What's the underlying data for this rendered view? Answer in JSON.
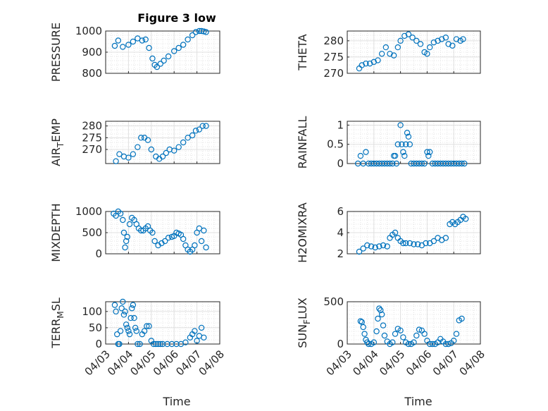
{
  "title": "Figure 3 low",
  "x_label": "Time",
  "x_ticks": [
    "04/03",
    "04/04",
    "04/05",
    "04/06",
    "04/07",
    "04/08"
  ],
  "marker_color": "#0072BD",
  "chart_data": [
    {
      "type": "scatter",
      "ylabel": "PRESSURE",
      "ylim": [
        800,
        1000
      ],
      "yticks": [
        "800",
        "900",
        "1000"
      ],
      "grid": "on",
      "xlim": [
        "04/03",
        "04/08"
      ],
      "series": [
        {
          "x": [
            3.4,
            3.55,
            3.75,
            4.0,
            4.2,
            4.4,
            4.6,
            4.75,
            4.9,
            5.05,
            5.15,
            5.25,
            5.4,
            5.55,
            5.75,
            6.0,
            6.2,
            6.4,
            6.6,
            6.8,
            6.95,
            7.1,
            7.2,
            7.3,
            7.4
          ],
          "y": [
            930,
            955,
            925,
            935,
            950,
            965,
            955,
            960,
            920,
            870,
            840,
            830,
            845,
            860,
            880,
            905,
            920,
            935,
            960,
            980,
            995,
            1000,
            1000,
            998,
            995
          ]
        }
      ]
    },
    {
      "type": "scatter",
      "ylabel": "THETA",
      "ylim": [
        270,
        283
      ],
      "yticks": [
        "270",
        "275",
        "280"
      ],
      "grid": "on",
      "xlim": [
        "04/03",
        "04/08"
      ],
      "series": [
        {
          "x": [
            3.45,
            3.55,
            3.7,
            3.85,
            4.0,
            4.15,
            4.3,
            4.45,
            4.6,
            4.75,
            4.9,
            5.0,
            5.15,
            5.3,
            5.45,
            5.6,
            5.75,
            5.9,
            6.0,
            6.1,
            6.25,
            6.4,
            6.55,
            6.7,
            6.8,
            6.95,
            7.1,
            7.25,
            7.35
          ],
          "y": [
            271.5,
            272.5,
            273,
            273,
            273.5,
            274,
            276,
            278,
            276,
            275.5,
            278,
            280,
            281.5,
            282,
            281,
            280,
            279,
            276.5,
            276,
            278,
            279.5,
            280,
            280.5,
            281,
            279,
            278.5,
            280.5,
            280,
            280.5
          ]
        }
      ]
    },
    {
      "type": "scatter",
      "ylabel": "AIR_TEMP",
      "ylim": [
        264,
        282
      ],
      "yticks": [
        "270",
        "275",
        "280"
      ],
      "grid": "on",
      "xlim": [
        "04/03",
        "04/08"
      ],
      "series": [
        {
          "x": [
            3.45,
            3.6,
            3.8,
            4.0,
            4.2,
            4.4,
            4.55,
            4.7,
            4.85,
            5.0,
            5.2,
            5.35,
            5.5,
            5.65,
            5.8,
            6.0,
            6.2,
            6.4,
            6.6,
            6.8,
            6.95,
            7.1,
            7.25,
            7.4
          ],
          "y": [
            265,
            268,
            267,
            266.5,
            268,
            271,
            275,
            275,
            274,
            270,
            267,
            266,
            267,
            268.5,
            270,
            269.5,
            271,
            273,
            275,
            276,
            278,
            278.5,
            280,
            280
          ]
        }
      ]
    },
    {
      "type": "scatter",
      "ylabel": "RAINFALL",
      "ylim": [
        0,
        1.1
      ],
      "yticks": [
        "0",
        "0.5",
        "1"
      ],
      "grid": "on",
      "xlim": [
        "04/03",
        "04/08"
      ],
      "series": [
        {
          "x": [
            3.4,
            3.5,
            3.6,
            3.7,
            3.8,
            3.9,
            4.0,
            4.1,
            4.2,
            4.3,
            4.4,
            4.5,
            4.6,
            4.7,
            4.75,
            4.8,
            4.85,
            4.9,
            5.0,
            5.05,
            5.1,
            5.15,
            5.2,
            5.25,
            5.3,
            5.35,
            5.4,
            5.5,
            5.6,
            5.7,
            5.8,
            5.9,
            6.0,
            6.05,
            6.1,
            6.2,
            6.3,
            6.4,
            6.5,
            6.6,
            6.7,
            6.8,
            6.9,
            7.0,
            7.1,
            7.2,
            7.3,
            7.4
          ],
          "y": [
            0,
            0.2,
            0,
            0.3,
            0,
            0,
            0,
            0,
            0,
            0,
            0,
            0,
            0,
            0,
            0.2,
            0.2,
            0,
            0.5,
            1.0,
            0.5,
            0.3,
            0.2,
            0.5,
            0.8,
            0.7,
            0.5,
            0,
            0,
            0,
            0,
            0,
            0,
            0.3,
            0.2,
            0.3,
            0,
            0,
            0,
            0,
            0,
            0,
            0,
            0,
            0,
            0,
            0,
            0,
            0
          ]
        }
      ]
    },
    {
      "type": "scatter",
      "ylabel": "MIXDEPTH",
      "ylim": [
        0,
        1000
      ],
      "yticks": [
        "0",
        "500",
        "1000"
      ],
      "grid": "on",
      "xlim": [
        "04/03",
        "04/08"
      ],
      "series": [
        {
          "x": [
            3.35,
            3.45,
            3.55,
            3.65,
            3.75,
            3.8,
            3.85,
            3.9,
            3.95,
            4.05,
            4.15,
            4.25,
            4.35,
            4.45,
            4.55,
            4.65,
            4.75,
            4.85,
            4.95,
            5.05,
            5.15,
            5.3,
            5.45,
            5.6,
            5.75,
            5.9,
            6.0,
            6.1,
            6.2,
            6.3,
            6.4,
            6.5,
            6.6,
            6.7,
            6.8,
            6.9,
            7.0,
            7.1,
            7.2,
            7.3,
            7.4
          ],
          "y": [
            950,
            900,
            1000,
            950,
            800,
            500,
            150,
            300,
            400,
            700,
            850,
            800,
            700,
            600,
            550,
            550,
            600,
            650,
            550,
            500,
            300,
            200,
            250,
            300,
            380,
            400,
            420,
            500,
            480,
            450,
            350,
            200,
            100,
            50,
            100,
            200,
            500,
            600,
            300,
            550,
            150
          ]
        }
      ]
    },
    {
      "type": "scatter",
      "ylabel": "H2OMIXRA",
      "ylim": [
        2,
        6
      ],
      "yticks": [
        "2",
        "4",
        "6"
      ],
      "grid": "on",
      "xlim": [
        "04/03",
        "04/08"
      ],
      "series": [
        {
          "x": [
            3.45,
            3.6,
            3.75,
            3.9,
            4.05,
            4.2,
            4.35,
            4.5,
            4.6,
            4.7,
            4.8,
            4.9,
            5.0,
            5.1,
            5.2,
            5.35,
            5.5,
            5.65,
            5.8,
            5.95,
            6.1,
            6.25,
            6.4,
            6.55,
            6.7,
            6.85,
            6.95,
            7.05,
            7.15,
            7.25,
            7.35,
            7.45
          ],
          "y": [
            2.2,
            2.5,
            2.8,
            2.7,
            2.6,
            2.7,
            2.8,
            2.7,
            3.5,
            3.8,
            4.0,
            3.5,
            3.2,
            3.0,
            3.0,
            3.0,
            2.9,
            2.9,
            2.8,
            3.0,
            3.0,
            3.2,
            3.5,
            3.3,
            3.5,
            4.8,
            5.0,
            4.8,
            5.0,
            5.2,
            5.5,
            5.3
          ]
        }
      ]
    },
    {
      "type": "scatter",
      "ylabel": "TERR_MSL",
      "ylim": [
        0,
        130
      ],
      "yticks": [
        "0",
        "50",
        "100"
      ],
      "grid": "on",
      "xlim": [
        "04/03",
        "04/08"
      ],
      "series": [
        {
          "x": [
            3.4,
            3.45,
            3.5,
            3.55,
            3.6,
            3.65,
            3.7,
            3.75,
            3.8,
            3.85,
            3.9,
            3.95,
            4.0,
            4.05,
            4.1,
            4.15,
            4.2,
            4.25,
            4.3,
            4.35,
            4.4,
            4.5,
            4.6,
            4.7,
            4.8,
            4.9,
            5.0,
            5.1,
            5.2,
            5.3,
            5.4,
            5.5,
            5.7,
            5.9,
            6.1,
            6.3,
            6.5,
            6.7,
            6.8,
            6.9,
            7.0,
            7.1,
            7.2,
            7.3
          ],
          "y": [
            120,
            100,
            30,
            0,
            0,
            40,
            110,
            130,
            90,
            100,
            60,
            50,
            40,
            30,
            80,
            110,
            120,
            80,
            50,
            40,
            0,
            0,
            30,
            40,
            55,
            55,
            10,
            0,
            0,
            0,
            0,
            0,
            0,
            0,
            0,
            0,
            5,
            20,
            30,
            40,
            10,
            25,
            50,
            20
          ]
        }
      ]
    },
    {
      "type": "scatter",
      "ylabel": "SUN_FLUX",
      "ylim": [
        0,
        500
      ],
      "yticks": [
        "0",
        "500"
      ],
      "grid": "on",
      "xlim": [
        "04/03",
        "04/08"
      ],
      "series": [
        {
          "x": [
            3.5,
            3.55,
            3.6,
            3.65,
            3.7,
            3.75,
            3.8,
            3.9,
            4.0,
            4.1,
            4.15,
            4.2,
            4.25,
            4.3,
            4.35,
            4.4,
            4.5,
            4.6,
            4.7,
            4.8,
            4.9,
            5.0,
            5.1,
            5.2,
            5.3,
            5.4,
            5.5,
            5.6,
            5.7,
            5.8,
            5.9,
            6.0,
            6.1,
            6.2,
            6.3,
            6.4,
            6.5,
            6.6,
            6.7,
            6.8,
            6.9,
            7.0,
            7.1,
            7.2,
            7.3
          ],
          "y": [
            270,
            260,
            200,
            120,
            50,
            20,
            0,
            0,
            20,
            150,
            300,
            420,
            400,
            350,
            220,
            100,
            30,
            0,
            20,
            120,
            180,
            160,
            80,
            20,
            0,
            0,
            20,
            100,
            170,
            160,
            120,
            40,
            0,
            0,
            0,
            20,
            60,
            30,
            0,
            0,
            10,
            40,
            120,
            280,
            300
          ]
        }
      ]
    }
  ]
}
